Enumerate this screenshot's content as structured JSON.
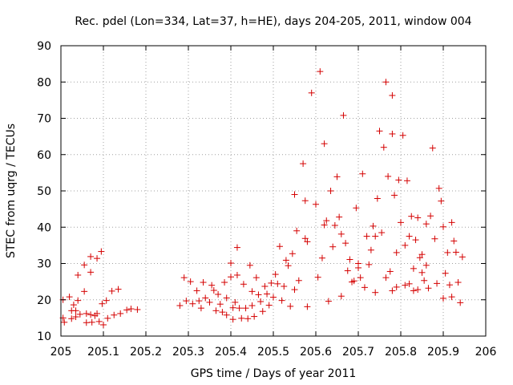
{
  "chart_data": {
    "type": "scatter",
    "title": "Rec. pdel (Lon=334, Lat=37, h=HE), days 204-205, 2011, window 004",
    "xlabel": "GPS time / Days of year 2011",
    "ylabel": "STEC from uqrg / TECUs",
    "xlim": [
      205,
      206
    ],
    "ylim": [
      10,
      90
    ],
    "grid": true,
    "legend": "none",
    "marker": "plus",
    "color": "#d40000",
    "x_ticks": [
      "205",
      "205.1",
      "205.2",
      "205.3",
      "205.4",
      "205.5",
      "205.6",
      "205.7",
      "205.8",
      "205.9",
      "206"
    ],
    "y_ticks": [
      "10",
      "20",
      "30",
      "40",
      "50",
      "60",
      "70",
      "80",
      "90"
    ],
    "points": [
      [
        205.005,
        20.0
      ],
      [
        205.005,
        15.0
      ],
      [
        205.008,
        13.8
      ],
      [
        205.02,
        20.8
      ],
      [
        205.025,
        17.0
      ],
      [
        205.025,
        14.8
      ],
      [
        205.03,
        18.6
      ],
      [
        205.035,
        17.0
      ],
      [
        205.035,
        15.3
      ],
      [
        205.04,
        26.8
      ],
      [
        205.04,
        19.8
      ],
      [
        205.045,
        16.0
      ],
      [
        205.055,
        29.6
      ],
      [
        205.055,
        22.3
      ],
      [
        205.06,
        16.2
      ],
      [
        205.06,
        13.7
      ],
      [
        205.07,
        31.9
      ],
      [
        205.07,
        27.6
      ],
      [
        205.07,
        15.9
      ],
      [
        205.073,
        13.8
      ],
      [
        205.08,
        15.6
      ],
      [
        205.085,
        31.4
      ],
      [
        205.085,
        16.2
      ],
      [
        205.09,
        14.0
      ],
      [
        205.095,
        33.3
      ],
      [
        205.097,
        18.9
      ],
      [
        205.1,
        13.1
      ],
      [
        205.107,
        19.8
      ],
      [
        205.11,
        14.9
      ],
      [
        205.12,
        22.4
      ],
      [
        205.125,
        15.8
      ],
      [
        205.135,
        22.9
      ],
      [
        205.14,
        16.2
      ],
      [
        205.155,
        17.2
      ],
      [
        205.165,
        17.5
      ],
      [
        205.18,
        17.3
      ],
      [
        205.28,
        18.4
      ],
      [
        205.29,
        26.1
      ],
      [
        205.295,
        19.7
      ],
      [
        205.305,
        25.0
      ],
      [
        205.31,
        18.9
      ],
      [
        205.32,
        22.5
      ],
      [
        205.325,
        19.7
      ],
      [
        205.33,
        17.7
      ],
      [
        205.335,
        24.8
      ],
      [
        205.34,
        20.5
      ],
      [
        205.35,
        19.3
      ],
      [
        205.355,
        24.0
      ],
      [
        205.36,
        22.6
      ],
      [
        205.365,
        17.0
      ],
      [
        205.37,
        21.5
      ],
      [
        205.375,
        18.8
      ],
      [
        205.38,
        16.6
      ],
      [
        205.385,
        24.8
      ],
      [
        205.39,
        20.5
      ],
      [
        205.39,
        15.8
      ],
      [
        205.4,
        30.1
      ],
      [
        205.4,
        26.3
      ],
      [
        205.405,
        17.8
      ],
      [
        205.405,
        14.6
      ],
      [
        205.41,
        19.3
      ],
      [
        205.415,
        34.4
      ],
      [
        205.415,
        26.8
      ],
      [
        205.42,
        17.7
      ],
      [
        205.425,
        14.9
      ],
      [
        205.43,
        24.3
      ],
      [
        205.435,
        17.7
      ],
      [
        205.44,
        14.8
      ],
      [
        205.445,
        29.5
      ],
      [
        205.45,
        22.3
      ],
      [
        205.45,
        18.4
      ],
      [
        205.455,
        15.4
      ],
      [
        205.46,
        26.1
      ],
      [
        205.465,
        21.4
      ],
      [
        205.47,
        19.5
      ],
      [
        205.475,
        16.8
      ],
      [
        205.48,
        23.7
      ],
      [
        205.485,
        21.6
      ],
      [
        205.49,
        18.5
      ],
      [
        205.495,
        24.6
      ],
      [
        205.5,
        20.7
      ],
      [
        205.505,
        27.0
      ],
      [
        205.51,
        24.4
      ],
      [
        205.515,
        34.7
      ],
      [
        205.52,
        19.8
      ],
      [
        205.525,
        23.7
      ],
      [
        205.53,
        30.9
      ],
      [
        205.535,
        29.4
      ],
      [
        205.54,
        18.2
      ],
      [
        205.545,
        32.7
      ],
      [
        205.55,
        49.0
      ],
      [
        205.555,
        39.0
      ],
      [
        205.56,
        25.3
      ],
      [
        205.57,
        57.5
      ],
      [
        205.575,
        36.9
      ],
      [
        205.58,
        18.1
      ],
      [
        205.59,
        77.0
      ],
      [
        205.605,
        26.2
      ],
      [
        205.61,
        82.9
      ],
      [
        205.62,
        63.0
      ],
      [
        205.625,
        41.8
      ],
      [
        205.635,
        50.0
      ],
      [
        205.64,
        34.6
      ],
      [
        205.65,
        53.9
      ],
      [
        205.655,
        42.8
      ],
      [
        205.665,
        70.8
      ],
      [
        205.67,
        35.6
      ],
      [
        205.68,
        31.1
      ],
      [
        205.69,
        25.2
      ],
      [
        205.7,
        30.0
      ],
      [
        205.71,
        54.7
      ],
      [
        205.72,
        37.5
      ],
      [
        205.73,
        33.7
      ],
      [
        205.74,
        22.0
      ],
      [
        205.75,
        66.5
      ],
      [
        205.76,
        62.0
      ],
      [
        205.765,
        80.0
      ],
      [
        205.77,
        54.0
      ],
      [
        205.775,
        27.8
      ],
      [
        205.78,
        76.3
      ],
      [
        205.78,
        65.7
      ],
      [
        205.785,
        48.8
      ],
      [
        205.79,
        33.0
      ],
      [
        205.795,
        53.0
      ],
      [
        205.8,
        41.3
      ],
      [
        205.805,
        65.3
      ],
      [
        205.81,
        35.0
      ],
      [
        205.815,
        52.8
      ],
      [
        205.82,
        24.4
      ],
      [
        205.825,
        43.0
      ],
      [
        205.83,
        28.6
      ],
      [
        205.835,
        36.5
      ],
      [
        205.84,
        42.6
      ],
      [
        205.845,
        31.6
      ],
      [
        205.85,
        27.5
      ],
      [
        205.855,
        25.3
      ],
      [
        205.86,
        40.9
      ],
      [
        205.865,
        23.2
      ],
      [
        205.875,
        61.8
      ],
      [
        205.88,
        36.8
      ],
      [
        205.885,
        24.5
      ],
      [
        205.89,
        50.7
      ],
      [
        205.895,
        47.2
      ],
      [
        205.9,
        40.1
      ],
      [
        205.905,
        27.3
      ],
      [
        205.91,
        33.0
      ],
      [
        205.915,
        24.1
      ],
      [
        205.92,
        41.3
      ],
      [
        205.925,
        36.2
      ],
      [
        205.93,
        33.1
      ],
      [
        205.935,
        24.8
      ],
      [
        205.94,
        19.2
      ],
      [
        205.945,
        31.8
      ],
      [
        205.575,
        47.3
      ],
      [
        205.55,
        22.8
      ],
      [
        205.6,
        46.3
      ],
      [
        205.615,
        31.5
      ],
      [
        205.63,
        19.6
      ],
      [
        205.645,
        40.5
      ],
      [
        205.66,
        38.1
      ],
      [
        205.675,
        28.0
      ],
      [
        205.685,
        24.9
      ],
      [
        205.695,
        45.3
      ],
      [
        205.705,
        26.1
      ],
      [
        205.715,
        23.4
      ],
      [
        205.725,
        29.7
      ],
      [
        205.735,
        40.3
      ],
      [
        205.745,
        47.9
      ],
      [
        205.755,
        38.5
      ],
      [
        205.765,
        26.1
      ],
      [
        205.79,
        23.5
      ],
      [
        205.81,
        24.0
      ],
      [
        205.83,
        22.5
      ],
      [
        205.85,
        32.5
      ],
      [
        205.87,
        43.1
      ],
      [
        205.9,
        20.4
      ],
      [
        205.58,
        36.0
      ],
      [
        205.62,
        40.6
      ],
      [
        205.66,
        21.0
      ],
      [
        205.7,
        28.8
      ],
      [
        205.74,
        37.5
      ],
      [
        205.78,
        22.5
      ],
      [
        205.82,
        37.5
      ],
      [
        205.86,
        29.5
      ],
      [
        205.84,
        22.8
      ],
      [
        205.92,
        20.8
      ]
    ]
  }
}
